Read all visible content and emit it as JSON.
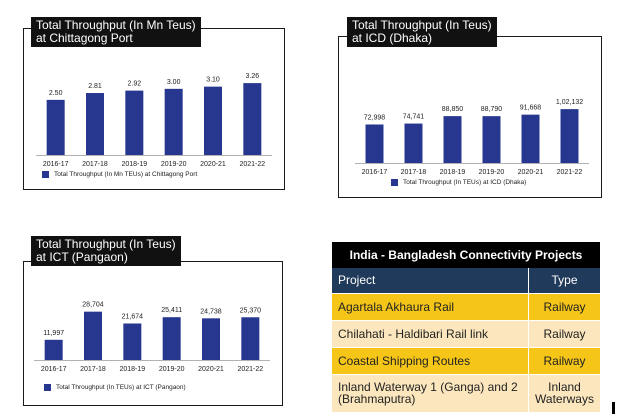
{
  "chart_data": [
    {
      "type": "bar",
      "title": "Total Throughput (In Mn Teus) at Chittagong Port",
      "title_lines": [
        "Total Throughput (In Mn Teus)",
        "at Chittagong Port"
      ],
      "categories": [
        "2016-17",
        "2017-18",
        "2018-19",
        "2019-20",
        "2020-21",
        "2021-22"
      ],
      "values": [
        2.5,
        2.81,
        2.92,
        3.0,
        3.1,
        3.26
      ],
      "labels": [
        "2.50",
        "2.81",
        "2.92",
        "3.00",
        "3.10",
        "3.26"
      ],
      "ylim": [
        0,
        3.9
      ],
      "legend": "Total Throughput (In Mn TEUs) at Chittagong Port",
      "color": "#27378f"
    },
    {
      "type": "bar",
      "title": "Total Throughput (In Teus) at ICD (Dhaka)",
      "title_lines": [
        "Total Throughput (In Teus)",
        "at ICD (Dhaka)"
      ],
      "categories": [
        "2016-17",
        "2017-18",
        "2018-19",
        "2019-20",
        "2020-21",
        "2021-22"
      ],
      "values": [
        72998,
        74741,
        88850,
        88790,
        91668,
        102132
      ],
      "labels": [
        "72,998",
        "74,741",
        "88,850",
        "88,790",
        "91,668",
        "1,02,132"
      ],
      "ylim": [
        0,
        163000
      ],
      "legend": "Total Throughput (In TEUs) at ICD (Dhaka)",
      "color": "#27378f"
    },
    {
      "type": "bar",
      "title": "Total Throughput (In Teus) at ICT (Pangaon)",
      "title_lines": [
        "Total Throughput (In Teus)",
        "at ICT (Pangaon)"
      ],
      "categories": [
        "2016-17",
        "2017-18",
        "2018-19",
        "2019-20",
        "2020-21",
        "2021-22"
      ],
      "values": [
        11997,
        28704,
        21674,
        25411,
        24738,
        25370
      ],
      "labels": [
        "11,997",
        "28,704",
        "21,674",
        "25,411",
        "24,738",
        "25,370"
      ],
      "ylim": [
        0,
        38000
      ],
      "legend": "Total Throughput (In TEUs) at ICT (Pangaon)",
      "color": "#27378f"
    }
  ],
  "table": {
    "title": "India - Bangladesh Connectivity Projects",
    "headers": [
      "Project",
      "Type"
    ],
    "rows": [
      {
        "project": "Agartala Akhaura Rail",
        "type": "Railway"
      },
      {
        "project": "Chilahati - Haldibari Rail link",
        "type": "Railway"
      },
      {
        "project": "Coastal Shipping Routes",
        "type": "Railway"
      },
      {
        "project_lines": [
          "Inland Waterway 1 (Ganga) and 2",
          "(Brahmaputra)"
        ],
        "type_lines": [
          "Inland",
          "Waterways"
        ]
      }
    ]
  },
  "colors": {
    "bar": "#27378f",
    "header": "#1f3a5a",
    "yellow": "#f5c518",
    "peach": "#fbe6bd"
  }
}
